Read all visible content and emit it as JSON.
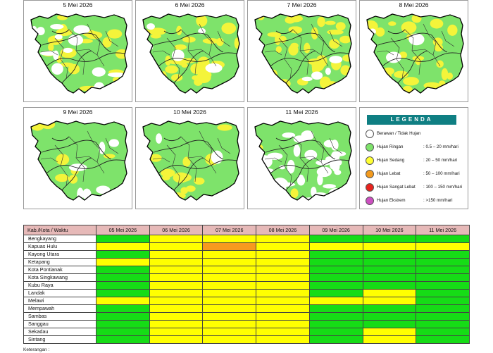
{
  "maps": [
    {
      "date": "5 Mei 2026",
      "yellow": 0.35,
      "white": 0.22
    },
    {
      "date": "6 Mei 2026",
      "yellow": 0.45,
      "white": 0.08
    },
    {
      "date": "7 Mei 2026",
      "yellow": 0.55,
      "white": 0.06
    },
    {
      "date": "8 Mei 2026",
      "yellow": 0.38,
      "white": 0.04
    },
    {
      "date": "9 Mei 2026",
      "yellow": 0.12,
      "white": 0.1
    },
    {
      "date": "10 Mei 2026",
      "yellow": 0.22,
      "white": 0.05
    },
    {
      "date": "11 Mei 2026",
      "yellow": 0.03,
      "white": 0.55
    }
  ],
  "legend": {
    "title": "LEGENDA",
    "items": [
      {
        "label": "Berawan / Tidak Hujan",
        "range": "",
        "color": "#ffffff"
      },
      {
        "label": "Hujan Ringan",
        "range": ": 0.5 – 20 mm/hari",
        "color": "#7ee36b"
      },
      {
        "label": "Hujan Sedang",
        "range": ": 20 – 50 mm/hari",
        "color": "#ffff33"
      },
      {
        "label": "Hujan Lebat",
        "range": ": 50 – 100 mm/hari",
        "color": "#f39a1e"
      },
      {
        "label": "Hujan Sangat Lebat",
        "range": ": 100 – 150 mm/hari",
        "color": "#e8231e"
      },
      {
        "label": "Hujan Ekstrem",
        "range": ": >150 mm/hari",
        "color": "#cc4fc0"
      }
    ]
  },
  "colors": {
    "G": "#16dc16",
    "Y": "#ffff00",
    "O": "#f79a1f"
  },
  "table": {
    "header_first": "Kab./Kota / Waktu",
    "dates": [
      "05 Mei 2026",
      "06 Mei 2026",
      "07 Mei 2026",
      "08 Mei 2026",
      "09 Mei 2026",
      "10 Mei 2026",
      "11 Mei 2026"
    ],
    "rows": [
      {
        "name": "Bengkayang",
        "cells": [
          "G",
          "Y",
          "Y",
          "Y",
          "G",
          "G",
          "G"
        ]
      },
      {
        "name": "Kapuas Hulu",
        "cells": [
          "Y",
          "Y",
          "O",
          "Y",
          "Y",
          "Y",
          "Y"
        ]
      },
      {
        "name": "Kayong Utara",
        "cells": [
          "G",
          "Y",
          "Y",
          "Y",
          "G",
          "G",
          "G"
        ]
      },
      {
        "name": "Ketapang",
        "cells": [
          "Y",
          "Y",
          "Y",
          "Y",
          "G",
          "G",
          "G"
        ]
      },
      {
        "name": "Kota Pontianak",
        "cells": [
          "G",
          "Y",
          "Y",
          "Y",
          "G",
          "G",
          "G"
        ]
      },
      {
        "name": "Kota Singkawang",
        "cells": [
          "G",
          "Y",
          "Y",
          "Y",
          "G",
          "G",
          "G"
        ]
      },
      {
        "name": "Kubu Raya",
        "cells": [
          "G",
          "Y",
          "Y",
          "Y",
          "G",
          "G",
          "G"
        ]
      },
      {
        "name": "Landak",
        "cells": [
          "G",
          "Y",
          "Y",
          "Y",
          "G",
          "Y",
          "G"
        ]
      },
      {
        "name": "Melawi",
        "cells": [
          "Y",
          "Y",
          "Y",
          "Y",
          "Y",
          "Y",
          "G"
        ]
      },
      {
        "name": "Mempawah",
        "cells": [
          "G",
          "Y",
          "Y",
          "Y",
          "G",
          "G",
          "G"
        ]
      },
      {
        "name": "Sambas",
        "cells": [
          "G",
          "Y",
          "Y",
          "Y",
          "G",
          "G",
          "G"
        ]
      },
      {
        "name": "Sanggau",
        "cells": [
          "G",
          "Y",
          "Y",
          "Y",
          "G",
          "G",
          "G"
        ]
      },
      {
        "name": "Sekadau",
        "cells": [
          "G",
          "Y",
          "Y",
          "Y",
          "G",
          "Y",
          "G"
        ]
      },
      {
        "name": "Sintang",
        "cells": [
          "G",
          "Y",
          "Y",
          "Y",
          "G",
          "Y",
          "G"
        ]
      }
    ]
  },
  "footer_note": "Keterangan :"
}
